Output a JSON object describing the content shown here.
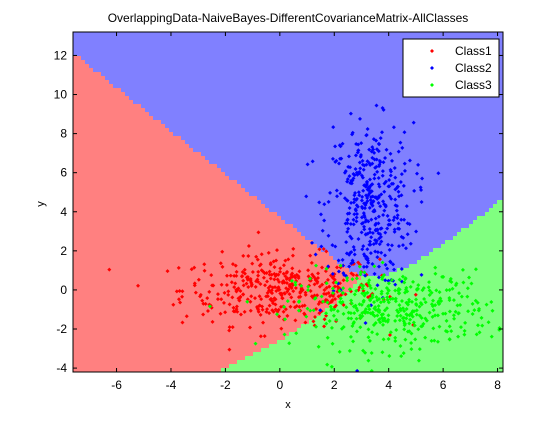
{
  "chart_data": {
    "type": "scatter",
    "title": "OverlappingData-NaiveBayes-DifferentCovarianceMatrix-AllClasses",
    "xlabel": "x",
    "ylabel": "y",
    "xlim": [
      -7.6,
      8.2
    ],
    "ylim": [
      -4.2,
      13.2
    ],
    "x_ticks": [
      -6,
      -4,
      -2,
      0,
      2,
      4,
      6,
      8
    ],
    "y_ticks": [
      -4,
      -2,
      0,
      2,
      4,
      6,
      8,
      10,
      12
    ],
    "grid": false,
    "legend_position": "top-right",
    "background": "decision regions",
    "region_colors": {
      "Class1": "#ff8080",
      "Class2": "#8080ff",
      "Class3": "#80ff80"
    },
    "series": [
      {
        "name": "Class1",
        "color": "#ff0000",
        "marker": "dot",
        "approx_center": [
          0.0,
          0.0
        ],
        "approx_spread": [
          1.8,
          0.9
        ],
        "approx_count": 400
      },
      {
        "name": "Class2",
        "color": "#0000ff",
        "marker": "dot",
        "approx_center": [
          3.3,
          4.3
        ],
        "approx_spread": [
          0.8,
          2.1
        ],
        "approx_count": 400
      },
      {
        "name": "Class3",
        "color": "#00ff00",
        "marker": "dot",
        "approx_center": [
          4.2,
          -1.0
        ],
        "approx_spread": [
          1.8,
          1.0
        ],
        "approx_count": 400
      }
    ]
  }
}
